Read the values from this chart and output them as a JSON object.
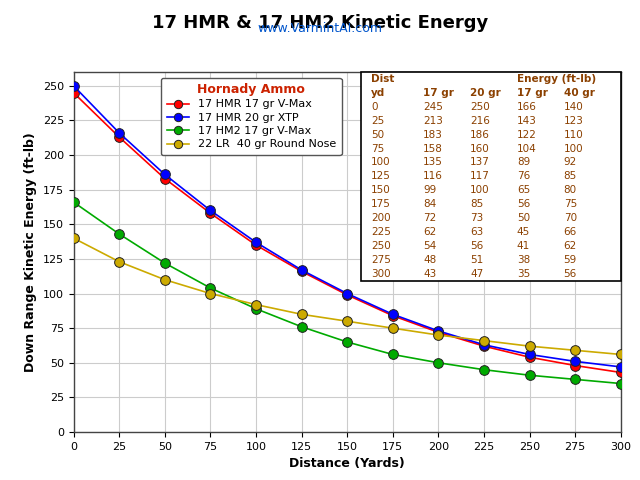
{
  "title": "17 HMR & 17 HM2 Kinetic Energy",
  "subtitle": "www.VarmintAI.com",
  "xlabel": "Distance (Yards)",
  "ylabel": "Down Range Kinetic Energy (ft-lb)",
  "distances": [
    0,
    25,
    50,
    75,
    100,
    125,
    150,
    175,
    200,
    225,
    250,
    275,
    300
  ],
  "series": [
    {
      "label": "17 HMR 17 gr V-Max",
      "color": "#FF0000",
      "values": [
        245,
        213,
        183,
        158,
        135,
        116,
        99,
        84,
        72,
        62,
        54,
        48,
        43
      ]
    },
    {
      "label": "17 HMR 20 gr XTP",
      "color": "#0000FF",
      "values": [
        250,
        216,
        186,
        160,
        137,
        117,
        100,
        85,
        73,
        63,
        56,
        51,
        47
      ]
    },
    {
      "label": "17 HM2 17 gr V-Max",
      "color": "#00AA00",
      "values": [
        166,
        143,
        122,
        104,
        89,
        76,
        65,
        56,
        50,
        45,
        41,
        38,
        35
      ]
    },
    {
      "label": "22 LR  40 gr Round Nose",
      "color": "#CCAA00",
      "values": [
        140,
        123,
        110,
        100,
        92,
        85,
        80,
        75,
        70,
        66,
        62,
        59,
        56
      ]
    }
  ],
  "ylim": [
    0,
    260
  ],
  "xlim": [
    0,
    300
  ],
  "yticks": [
    0,
    25,
    50,
    75,
    100,
    125,
    150,
    175,
    200,
    225,
    250
  ],
  "xticks": [
    0,
    25,
    50,
    75,
    100,
    125,
    150,
    175,
    200,
    225,
    250,
    275,
    300
  ],
  "bg_color": "#FFFFFF",
  "grid_color": "#CCCCCC",
  "table_rows": [
    [
      0,
      245,
      250,
      166,
      140
    ],
    [
      25,
      213,
      216,
      143,
      123
    ],
    [
      50,
      183,
      186,
      122,
      110
    ],
    [
      75,
      158,
      160,
      104,
      100
    ],
    [
      100,
      135,
      137,
      89,
      92
    ],
    [
      125,
      116,
      117,
      76,
      85
    ],
    [
      150,
      99,
      100,
      65,
      80
    ],
    [
      175,
      84,
      85,
      56,
      75
    ],
    [
      200,
      72,
      73,
      50,
      70
    ],
    [
      225,
      62,
      63,
      45,
      66
    ],
    [
      250,
      54,
      56,
      41,
      62
    ],
    [
      275,
      48,
      51,
      38,
      59
    ],
    [
      300,
      43,
      47,
      35,
      56
    ]
  ],
  "legend_title": "Hornady Ammo",
  "title_fontsize": 13,
  "subtitle_fontsize": 9,
  "axis_label_fontsize": 9,
  "tick_fontsize": 8,
  "table_fontsize": 7.5,
  "legend_fontsize": 8,
  "legend_title_fontsize": 9
}
